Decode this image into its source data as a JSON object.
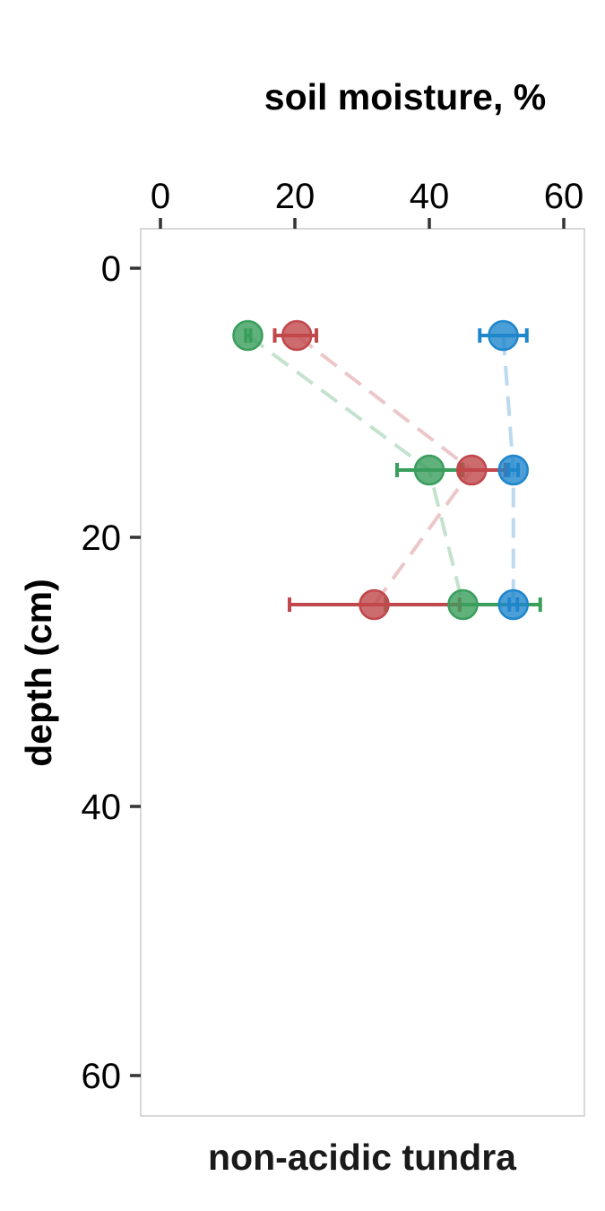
{
  "chart_data": {
    "type": "scatter",
    "title": "",
    "xlabel": "soil moisture, %",
    "ylabel": "depth (cm)",
    "facet_label": "non-acidic tundra",
    "x_axis_position": "top",
    "y_axis_reversed": true,
    "xlim": [
      -2,
      63
    ],
    "ylim": [
      -3,
      63
    ],
    "xticks": [
      0,
      20,
      40,
      60
    ],
    "yticks": [
      0,
      20,
      40,
      60
    ],
    "grid": false,
    "legend": "none",
    "series": [
      {
        "color": "#3a9e5c",
        "points": [
          {
            "depth": 5,
            "x": 13,
            "xmin": 12.7,
            "xmax": 13.4
          },
          {
            "depth": 15,
            "x": 40,
            "xmin": 35.2,
            "xmax": 45
          },
          {
            "depth": 25,
            "x": 45,
            "xmin": 33.5,
            "xmax": 56.5
          }
        ]
      },
      {
        "color": "#c0474b",
        "points": [
          {
            "depth": 5,
            "x": 20.3,
            "xmin": 17,
            "xmax": 23.2
          },
          {
            "depth": 15,
            "x": 46.3,
            "xmin": 44.5,
            "xmax": 51.3
          },
          {
            "depth": 25,
            "x": 31.8,
            "xmin": 19.2,
            "xmax": 44.5
          }
        ]
      },
      {
        "color": "#1f86cc",
        "points": [
          {
            "depth": 5,
            "x": 51,
            "xmin": 47.5,
            "xmax": 54.5
          },
          {
            "depth": 15,
            "x": 52.5,
            "xmin": 51.8,
            "xmax": 53.2
          },
          {
            "depth": 25,
            "x": 52.5,
            "xmin": 51.9,
            "xmax": 53.1
          }
        ]
      }
    ]
  }
}
